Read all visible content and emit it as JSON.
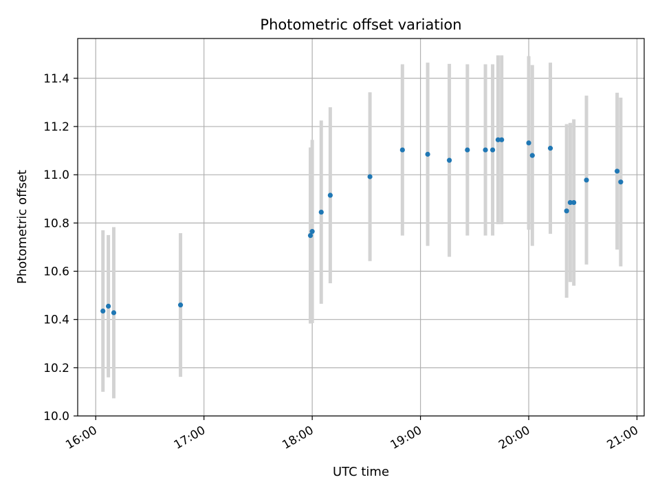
{
  "chart_data": {
    "type": "scatter",
    "title": "Photometric offset variation",
    "xlabel": "UTC time",
    "ylabel": "Photometric offset",
    "xlim": [
      "15:50",
      "21:04"
    ],
    "ylim": [
      10.0,
      11.565
    ],
    "x_ticks": [
      "16:00",
      "17:00",
      "18:00",
      "19:00",
      "20:00",
      "21:00"
    ],
    "y_ticks": [
      "10.0",
      "10.2",
      "10.4",
      "10.6",
      "10.8",
      "11.0",
      "11.2",
      "11.4"
    ],
    "grid": true,
    "point_color": "#1f77b4",
    "errorbar_color": "#d3d3d3",
    "points": [
      {
        "t": "16:04",
        "y": 10.435,
        "err": 0.335
      },
      {
        "t": "16:07",
        "y": 10.455,
        "err": 0.295
      },
      {
        "t": "16:10",
        "y": 10.428,
        "err": 0.355
      },
      {
        "t": "16:47",
        "y": 10.46,
        "err": 0.298
      },
      {
        "t": "17:59",
        "y": 10.748,
        "err": 0.365
      },
      {
        "t": "18:00",
        "y": 10.765,
        "err": 0.38
      },
      {
        "t": "18:05",
        "y": 10.845,
        "err": 0.38
      },
      {
        "t": "18:10",
        "y": 10.915,
        "err": 0.365
      },
      {
        "t": "18:32",
        "y": 10.992,
        "err": 0.35
      },
      {
        "t": "18:50",
        "y": 11.103,
        "err": 0.355
      },
      {
        "t": "19:04",
        "y": 11.085,
        "err": 0.38
      },
      {
        "t": "19:16",
        "y": 11.06,
        "err": 0.4
      },
      {
        "t": "19:26",
        "y": 11.103,
        "err": 0.355
      },
      {
        "t": "19:36",
        "y": 11.103,
        "err": 0.355
      },
      {
        "t": "19:40",
        "y": 11.103,
        "err": 0.355
      },
      {
        "t": "19:43",
        "y": 11.145,
        "err": 0.35
      },
      {
        "t": "19:45",
        "y": 11.145,
        "err": 0.35
      },
      {
        "t": "20:00",
        "y": 11.132,
        "err": 0.36
      },
      {
        "t": "20:02",
        "y": 11.08,
        "err": 0.375
      },
      {
        "t": "20:12",
        "y": 11.11,
        "err": 0.355
      },
      {
        "t": "20:21",
        "y": 10.85,
        "err": 0.36
      },
      {
        "t": "20:23",
        "y": 10.885,
        "err": 0.33
      },
      {
        "t": "20:25",
        "y": 10.885,
        "err": 0.345
      },
      {
        "t": "20:32",
        "y": 10.978,
        "err": 0.35
      },
      {
        "t": "20:49",
        "y": 11.015,
        "err": 0.325
      },
      {
        "t": "20:51",
        "y": 10.97,
        "err": 0.35
      }
    ]
  }
}
